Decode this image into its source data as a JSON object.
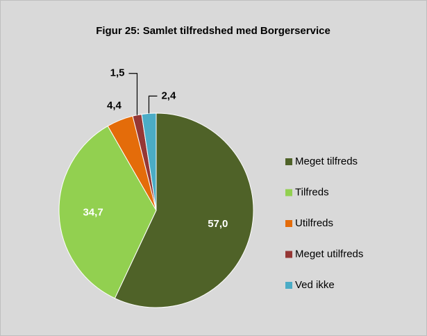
{
  "chart_data": {
    "type": "pie",
    "title": "Figur 25: Samlet tilfredshed med Borgerservice",
    "categories": [
      "Meget tilfreds",
      "Tilfreds",
      "Utilfreds",
      "Meget utilfreds",
      "Ved ikke"
    ],
    "values": [
      57.0,
      34.7,
      4.4,
      1.5,
      2.4
    ],
    "value_labels": [
      "57,0",
      "34,7",
      "4,4",
      "1,5",
      "2,4"
    ],
    "colors": [
      "#4f6228",
      "#92d050",
      "#e46c0a",
      "#953735",
      "#4bacc6"
    ],
    "legend": "right"
  }
}
